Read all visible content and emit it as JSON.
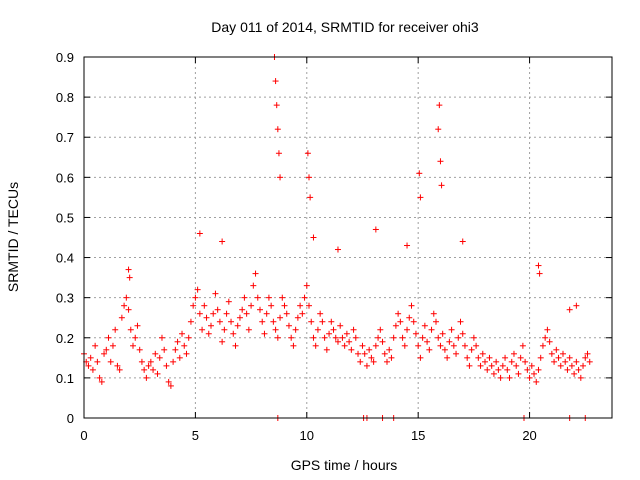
{
  "chart_data": {
    "type": "scatter",
    "title": "Day 011 of 2014, SRMTID for receiver ohi3",
    "xlabel": "GPS time / hours",
    "ylabel": "SRMTID / TECUs",
    "xlim": [
      0,
      23.7
    ],
    "ylim": [
      0,
      0.9
    ],
    "xticks": [
      0,
      5,
      10,
      15,
      20
    ],
    "yticks": [
      0,
      0.1,
      0.2,
      0.3,
      0.4,
      0.5,
      0.6,
      0.7,
      0.8,
      0.9
    ],
    "grid": true,
    "marker": "+",
    "series": [
      {
        "name": "SRMTID",
        "color": "#ff0000",
        "x": [
          0.0,
          0.1,
          0.2,
          0.3,
          0.4,
          0.5,
          0.6,
          0.7,
          0.8,
          0.9,
          1.0,
          1.1,
          1.2,
          1.3,
          1.4,
          1.5,
          1.6,
          1.7,
          1.8,
          1.9,
          2.0,
          2.1,
          2.2,
          2.3,
          2.4,
          2.5,
          2.6,
          2.7,
          2.8,
          2.9,
          3.0,
          3.1,
          3.2,
          3.3,
          3.4,
          3.5,
          3.6,
          3.7,
          3.8,
          3.9,
          4.0,
          4.1,
          4.2,
          4.3,
          4.4,
          4.5,
          4.6,
          4.7,
          4.8,
          4.9,
          5.0,
          5.1,
          5.2,
          5.3,
          5.4,
          5.5,
          5.6,
          5.7,
          5.8,
          5.9,
          6.0,
          6.1,
          6.2,
          6.3,
          6.4,
          6.5,
          6.6,
          6.7,
          6.8,
          6.9,
          7.0,
          7.1,
          7.2,
          7.3,
          7.4,
          7.5,
          7.6,
          7.7,
          7.8,
          7.9,
          8.0,
          8.1,
          8.2,
          8.3,
          8.4,
          8.5,
          8.6,
          8.7,
          8.8,
          8.9,
          9.0,
          9.1,
          9.2,
          9.3,
          9.4,
          9.5,
          9.6,
          9.7,
          9.8,
          9.9,
          10.0,
          10.1,
          10.2,
          10.3,
          10.4,
          10.5,
          10.6,
          10.7,
          10.8,
          10.9,
          11.0,
          11.1,
          11.2,
          11.3,
          11.4,
          11.5,
          11.6,
          11.7,
          11.8,
          11.9,
          12.0,
          12.1,
          12.2,
          12.3,
          12.4,
          12.5,
          12.6,
          12.7,
          12.8,
          12.9,
          13.0,
          13.1,
          13.2,
          13.3,
          13.4,
          13.5,
          13.6,
          13.7,
          13.8,
          13.9,
          14.0,
          14.1,
          14.2,
          14.3,
          14.4,
          14.5,
          14.6,
          14.7,
          14.8,
          14.9,
          15.0,
          15.1,
          15.2,
          15.3,
          15.4,
          15.5,
          15.6,
          15.7,
          15.8,
          15.9,
          16.0,
          16.1,
          16.2,
          16.3,
          16.4,
          16.5,
          16.6,
          16.7,
          16.8,
          16.9,
          17.0,
          17.1,
          17.2,
          17.3,
          17.4,
          17.5,
          17.6,
          17.7,
          17.8,
          17.9,
          18.0,
          18.1,
          18.2,
          18.3,
          18.4,
          18.5,
          18.6,
          18.7,
          18.8,
          18.9,
          19.0,
          19.1,
          19.2,
          19.3,
          19.4,
          19.5,
          19.6,
          19.7,
          19.8,
          19.9,
          20.0,
          20.1,
          20.2,
          20.3,
          20.4,
          20.5,
          20.6,
          20.7,
          20.8,
          20.9,
          21.0,
          21.1,
          21.2,
          21.3,
          21.4,
          21.5,
          21.6,
          21.7,
          21.8,
          21.9,
          22.0,
          22.1,
          22.2,
          22.3,
          22.4,
          22.5,
          22.6,
          22.7,
          8.55,
          8.6,
          8.65,
          8.7,
          8.75,
          8.8,
          10.05,
          10.1,
          10.15,
          15.05,
          15.1,
          15.9,
          15.95,
          16.0,
          16.05,
          2.0,
          2.05,
          5.2,
          6.2,
          10.3,
          11.4,
          13.1,
          14.5,
          17.0,
          20.4,
          20.45,
          21.8,
          22.1,
          8.7,
          12.55,
          12.7,
          13.4,
          13.9,
          19.75,
          21.8,
          22.5
        ],
        "y": [
          0.16,
          0.14,
          0.13,
          0.15,
          0.12,
          0.18,
          0.14,
          0.1,
          0.09,
          0.16,
          0.17,
          0.2,
          0.14,
          0.18,
          0.22,
          0.13,
          0.12,
          0.25,
          0.28,
          0.3,
          0.27,
          0.22,
          0.18,
          0.2,
          0.23,
          0.17,
          0.14,
          0.12,
          0.1,
          0.13,
          0.14,
          0.12,
          0.16,
          0.11,
          0.15,
          0.2,
          0.17,
          0.13,
          0.09,
          0.08,
          0.14,
          0.17,
          0.19,
          0.15,
          0.21,
          0.18,
          0.16,
          0.2,
          0.24,
          0.28,
          0.3,
          0.32,
          0.26,
          0.22,
          0.28,
          0.25,
          0.21,
          0.23,
          0.26,
          0.31,
          0.27,
          0.24,
          0.19,
          0.22,
          0.26,
          0.29,
          0.24,
          0.21,
          0.18,
          0.23,
          0.25,
          0.27,
          0.3,
          0.26,
          0.22,
          0.28,
          0.33,
          0.36,
          0.3,
          0.27,
          0.24,
          0.21,
          0.26,
          0.3,
          0.28,
          0.24,
          0.22,
          0.2,
          0.25,
          0.3,
          0.28,
          0.26,
          0.23,
          0.2,
          0.18,
          0.22,
          0.25,
          0.28,
          0.26,
          0.3,
          0.33,
          0.28,
          0.24,
          0.2,
          0.18,
          0.22,
          0.26,
          0.24,
          0.2,
          0.17,
          0.21,
          0.24,
          0.22,
          0.2,
          0.19,
          0.23,
          0.2,
          0.18,
          0.21,
          0.19,
          0.17,
          0.22,
          0.2,
          0.16,
          0.14,
          0.18,
          0.16,
          0.13,
          0.17,
          0.15,
          0.14,
          0.18,
          0.2,
          0.22,
          0.19,
          0.16,
          0.14,
          0.17,
          0.15,
          0.2,
          0.23,
          0.26,
          0.24,
          0.2,
          0.18,
          0.22,
          0.25,
          0.28,
          0.24,
          0.21,
          0.18,
          0.15,
          0.2,
          0.23,
          0.19,
          0.17,
          0.22,
          0.26,
          0.24,
          0.2,
          0.18,
          0.21,
          0.17,
          0.15,
          0.19,
          0.22,
          0.18,
          0.16,
          0.2,
          0.24,
          0.21,
          0.18,
          0.15,
          0.13,
          0.17,
          0.2,
          0.18,
          0.15,
          0.13,
          0.16,
          0.14,
          0.12,
          0.15,
          0.13,
          0.11,
          0.14,
          0.12,
          0.1,
          0.13,
          0.15,
          0.12,
          0.1,
          0.14,
          0.16,
          0.13,
          0.11,
          0.15,
          0.18,
          0.14,
          0.12,
          0.1,
          0.13,
          0.11,
          0.09,
          0.12,
          0.15,
          0.18,
          0.2,
          0.22,
          0.19,
          0.16,
          0.14,
          0.17,
          0.15,
          0.13,
          0.16,
          0.14,
          0.12,
          0.15,
          0.13,
          0.11,
          0.14,
          0.12,
          0.1,
          0.13,
          0.15,
          0.16,
          0.14,
          0.9,
          0.84,
          0.78,
          0.72,
          0.66,
          0.6,
          0.66,
          0.6,
          0.55,
          0.61,
          0.55,
          0.72,
          0.78,
          0.64,
          0.58,
          0.37,
          0.35,
          0.46,
          0.44,
          0.45,
          0.42,
          0.47,
          0.43,
          0.44,
          0.38,
          0.36,
          0.27,
          0.28,
          0.0,
          0.0,
          0.0,
          0.0,
          0.0,
          0.0,
          0.0,
          0.0
        ]
      }
    ]
  }
}
